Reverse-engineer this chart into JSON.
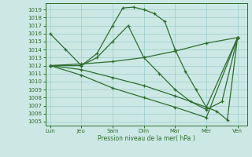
{
  "xlabel": "Pression niveau de la mer( hPa )",
  "background_color": "#cce8e4",
  "grid_color": "#99cccc",
  "line_color": "#2d6e2d",
  "ylim": [
    1004.5,
    1019.8
  ],
  "yticks": [
    1005,
    1006,
    1007,
    1008,
    1009,
    1010,
    1011,
    1012,
    1013,
    1014,
    1015,
    1016,
    1017,
    1018,
    1019
  ],
  "xtick_labels": [
    "Lun",
    "Jeu",
    "Sam",
    "Dim",
    "Mar",
    "Mer",
    "Ven"
  ],
  "xtick_positions": [
    0,
    1,
    2,
    3,
    4,
    5,
    6
  ],
  "xlim": [
    -0.15,
    6.3
  ],
  "lines": [
    {
      "x": [
        0,
        0.5,
        1,
        1.5,
        2,
        2.33,
        2.67,
        3,
        3.33,
        3.67,
        4,
        4.33,
        4.67,
        5,
        5.33,
        5.67,
        6
      ],
      "y": [
        1016,
        1014,
        1012,
        1013.5,
        1017,
        1019.2,
        1019.3,
        1019.0,
        1018.5,
        1017.5,
        1014.0,
        1011.3,
        1009.0,
        1006.8,
        1006.3,
        1005.2,
        1015.5
      ]
    },
    {
      "x": [
        0,
        1,
        1.5,
        2,
        2.5,
        3,
        3.5,
        4,
        4.5,
        5,
        5.5,
        6
      ],
      "y": [
        1012,
        1012,
        1013,
        1015,
        1017,
        1013,
        1011,
        1009,
        1007.5,
        1006.5,
        1007.5,
        1015.5
      ]
    },
    {
      "x": [
        0,
        1,
        2,
        3,
        4,
        5,
        6
      ],
      "y": [
        1012,
        1012.2,
        1012.5,
        1013.0,
        1013.8,
        1014.8,
        1015.5
      ]
    },
    {
      "x": [
        0,
        1,
        2,
        3,
        4,
        5,
        6
      ],
      "y": [
        1012,
        1011.5,
        1010.5,
        1009.5,
        1008.2,
        1006.8,
        1015.5
      ]
    },
    {
      "x": [
        0,
        1,
        2,
        3,
        4,
        5,
        6
      ],
      "y": [
        1012,
        1010.8,
        1009.2,
        1008.0,
        1006.8,
        1005.5,
        1015.5
      ]
    }
  ]
}
